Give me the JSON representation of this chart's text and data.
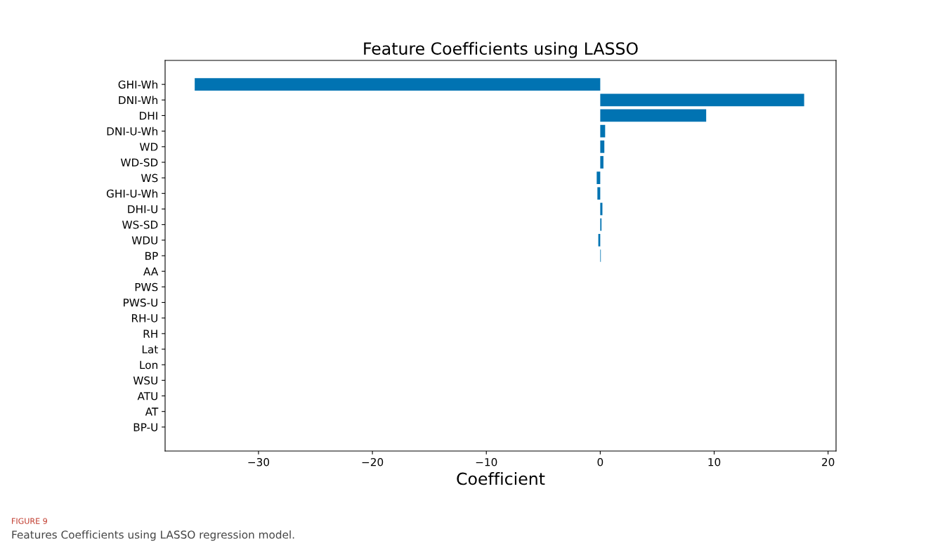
{
  "chart_data": {
    "type": "bar",
    "orientation": "horizontal",
    "title": "Feature Coefficients using LASSO",
    "xlabel": "Coefficient",
    "categories": [
      "GHI-Wh",
      "DNI-Wh",
      "DHI",
      "DNI-U-Wh",
      "WD",
      "WD-SD",
      "WS",
      "GHI-U-Wh",
      "DHI-U",
      "WS-SD",
      "WDU",
      "BP",
      "AA",
      "PWS",
      "PWS-U",
      "RH-U",
      "RH",
      "Lat",
      "Lon",
      "WSU",
      "ATU",
      "AT",
      "BP-U"
    ],
    "values": [
      -35.6,
      17.9,
      9.3,
      0.43,
      0.36,
      0.28,
      -0.31,
      -0.25,
      0.19,
      0.11,
      -0.17,
      0.05,
      0,
      0,
      0,
      0,
      0,
      0,
      0,
      0,
      0,
      0,
      0
    ],
    "color": "#0173b2",
    "xlim": [
      -38.2,
      20.7
    ],
    "xticks": [
      {
        "value": -30,
        "label": "−30"
      },
      {
        "value": -20,
        "label": "−20"
      },
      {
        "value": -10,
        "label": "−10"
      },
      0,
      10,
      20
    ],
    "annotations": [
      "FIGURE 9",
      "Features Coefficients using LASSO regression model."
    ]
  }
}
